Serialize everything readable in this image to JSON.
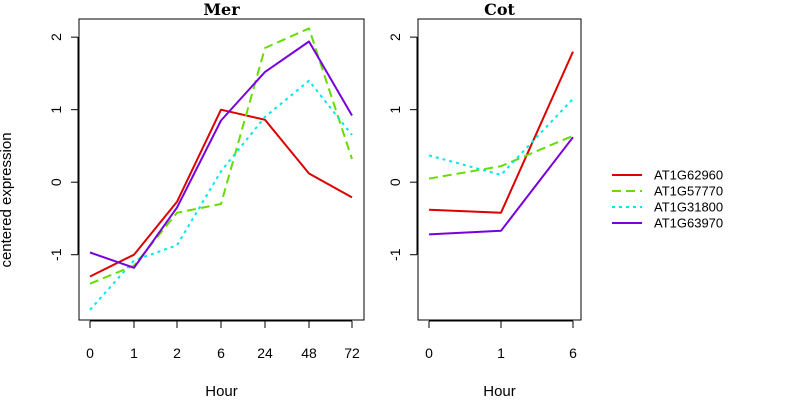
{
  "figure": {
    "ylabel": "centered expression",
    "xlabel": "Hour"
  },
  "chart_data": [
    {
      "type": "line",
      "title": "Mer",
      "xlabel": "Hour",
      "ylabel": "centered expression",
      "categories": [
        "0",
        "1",
        "2",
        "6",
        "24",
        "48",
        "72"
      ],
      "ylim": [
        -1.9,
        2.25
      ],
      "yticks": [
        -1,
        0,
        1,
        2
      ],
      "series": [
        {
          "name": "AT1G62960",
          "color": "#dd0000",
          "dash": "solid",
          "values": [
            -1.3,
            -1.0,
            -0.27,
            1.0,
            0.86,
            0.12,
            -0.21
          ]
        },
        {
          "name": "AT1G57770",
          "color": "#66dd00",
          "dash": "dashed",
          "values": [
            -1.4,
            -1.15,
            -0.42,
            -0.3,
            1.85,
            2.12,
            0.32
          ]
        },
        {
          "name": "AT1G31800",
          "color": "#00e8e8",
          "dash": "dotted",
          "values": [
            -1.76,
            -1.08,
            -0.87,
            0.15,
            0.9,
            1.4,
            0.65
          ]
        },
        {
          "name": "AT1G63970",
          "color": "#7700dd",
          "dash": "solid",
          "values": [
            -0.97,
            -1.18,
            -0.35,
            0.85,
            1.52,
            1.94,
            0.92
          ]
        }
      ]
    },
    {
      "type": "line",
      "title": "Cot",
      "xlabel": "Hour",
      "ylabel": "",
      "categories": [
        "0",
        "1",
        "6"
      ],
      "ylim": [
        -1.9,
        2.25
      ],
      "yticks": [
        -1,
        0,
        1,
        2
      ],
      "series": [
        {
          "name": "AT1G62960",
          "color": "#dd0000",
          "dash": "solid",
          "values": [
            -0.38,
            -0.42,
            1.8
          ]
        },
        {
          "name": "AT1G57770",
          "color": "#66dd00",
          "dash": "dashed",
          "values": [
            0.05,
            0.22,
            0.64
          ]
        },
        {
          "name": "AT1G31800",
          "color": "#00e8e8",
          "dash": "dotted",
          "values": [
            0.37,
            0.1,
            1.15
          ]
        },
        {
          "name": "AT1G63970",
          "color": "#7700dd",
          "dash": "solid",
          "values": [
            -0.72,
            -0.67,
            0.62
          ]
        }
      ]
    }
  ],
  "legend": {
    "placement": "right",
    "entries": [
      "AT1G62960",
      "AT1G57770",
      "AT1G31800",
      "AT1G63970"
    ]
  }
}
